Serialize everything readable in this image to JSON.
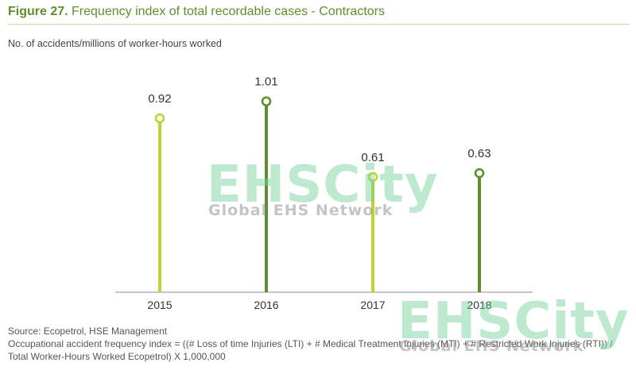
{
  "figure": {
    "number": "Figure 27.",
    "title": "Frequency index of total recordable cases - Contractors"
  },
  "chart_data": {
    "type": "lollipop",
    "ylabel": "No. of accidents/millions of worker-hours worked",
    "ylim": [
      0,
      1.2
    ],
    "grid": false,
    "categories": [
      "2015",
      "2016",
      "2017",
      "2018"
    ],
    "values": [
      0.92,
      1.01,
      0.61,
      0.63
    ],
    "value_labels": [
      "0.92",
      "1.01",
      "0.61",
      "0.63"
    ],
    "colors": [
      "#c0d32e",
      "#5e8f2a",
      "#c0d32e",
      "#5e8f2a"
    ]
  },
  "footer": {
    "source": "Source: Ecopetrol, HSE Management",
    "formula": "Occupational accident frequency index = ((# Loss of time Injuries (LTI) + # Medical Treatment Injuries (MTI) + # Restricted Work Injuries (RTI)) / Total Worker-Hours Worked Ecopetrol) X 1,000,000"
  },
  "watermark": {
    "brand": "EHSCity",
    "tagline": "Global EHS Network"
  }
}
